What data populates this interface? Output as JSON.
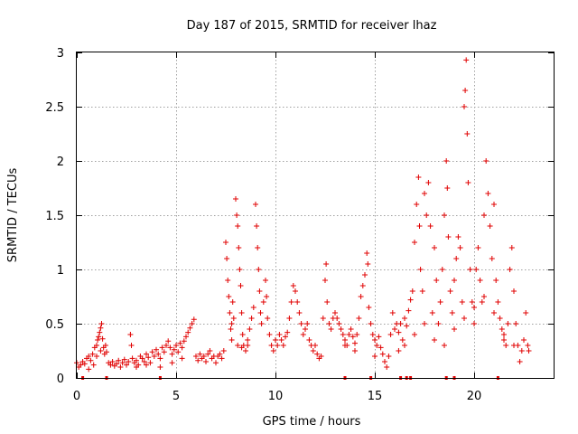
{
  "chart_data": {
    "type": "scatter",
    "title": "Day 187 of 2015, SRMTID for receiver lhaz",
    "xlabel": "GPS time / hours",
    "ylabel": "SRMTID / TECUs",
    "xlim": [
      0,
      24
    ],
    "ylim": [
      0,
      3
    ],
    "xticks": [
      0,
      5,
      10,
      15,
      20
    ],
    "yticks": [
      0,
      0.5,
      1,
      1.5,
      2,
      2.5,
      3
    ],
    "xtick_labels": [
      "0",
      "5",
      "10",
      "15",
      "20"
    ],
    "ytick_labels": [
      "0",
      "0.5",
      "1",
      "1.5",
      "2",
      "2.5",
      "3"
    ],
    "grid": true,
    "marker": "+",
    "color": "#e00000",
    "series": [
      {
        "name": "SRMTID",
        "points": [
          [
            0.0,
            0.14
          ],
          [
            0.1,
            0.1
          ],
          [
            0.2,
            0.12
          ],
          [
            0.3,
            0.15
          ],
          [
            0.4,
            0.13
          ],
          [
            0.5,
            0.18
          ],
          [
            0.6,
            0.2
          ],
          [
            0.7,
            0.16
          ],
          [
            0.8,
            0.22
          ],
          [
            0.9,
            0.28
          ],
          [
            1.0,
            0.3
          ],
          [
            1.05,
            0.35
          ],
          [
            1.1,
            0.38
          ],
          [
            1.15,
            0.42
          ],
          [
            1.2,
            0.46
          ],
          [
            1.25,
            0.5
          ],
          [
            1.3,
            0.36
          ],
          [
            1.35,
            0.28
          ],
          [
            1.4,
            0.22
          ],
          [
            1.45,
            0.3
          ],
          [
            1.5,
            0.24
          ],
          [
            0.6,
            0.08
          ],
          [
            0.85,
            0.12
          ],
          [
            1.0,
            0.2
          ],
          [
            1.2,
            0.25
          ],
          [
            1.6,
            0.14
          ],
          [
            1.7,
            0.12
          ],
          [
            1.8,
            0.15
          ],
          [
            1.9,
            0.11
          ],
          [
            2.0,
            0.13
          ],
          [
            2.1,
            0.16
          ],
          [
            2.2,
            0.1
          ],
          [
            2.3,
            0.14
          ],
          [
            2.4,
            0.17
          ],
          [
            2.5,
            0.12
          ],
          [
            2.6,
            0.15
          ],
          [
            2.7,
            0.4
          ],
          [
            2.75,
            0.3
          ],
          [
            2.8,
            0.18
          ],
          [
            2.9,
            0.14
          ],
          [
            3.0,
            0.16
          ],
          [
            3.1,
            0.12
          ],
          [
            3.2,
            0.2
          ],
          [
            3.3,
            0.18
          ],
          [
            3.4,
            0.15
          ],
          [
            3.5,
            0.22
          ],
          [
            3.6,
            0.19
          ],
          [
            3.7,
            0.14
          ],
          [
            3.8,
            0.24
          ],
          [
            3.9,
            0.2
          ],
          [
            4.0,
            0.26
          ],
          [
            4.1,
            0.22
          ],
          [
            4.2,
            0.18
          ],
          [
            4.3,
            0.28
          ],
          [
            4.4,
            0.24
          ],
          [
            4.5,
            0.3
          ],
          [
            4.6,
            0.34
          ],
          [
            4.7,
            0.28
          ],
          [
            4.8,
            0.22
          ],
          [
            4.9,
            0.26
          ],
          [
            5.0,
            0.3
          ],
          [
            5.1,
            0.24
          ],
          [
            5.2,
            0.32
          ],
          [
            5.3,
            0.28
          ],
          [
            5.4,
            0.34
          ],
          [
            5.5,
            0.38
          ],
          [
            5.6,
            0.42
          ],
          [
            5.7,
            0.46
          ],
          [
            5.8,
            0.5
          ],
          [
            5.9,
            0.54
          ],
          [
            3.0,
            0.1
          ],
          [
            3.5,
            0.12
          ],
          [
            4.2,
            0.1
          ],
          [
            4.8,
            0.14
          ],
          [
            5.3,
            0.18
          ],
          [
            6.0,
            0.2
          ],
          [
            6.1,
            0.16
          ],
          [
            6.2,
            0.22
          ],
          [
            6.3,
            0.18
          ],
          [
            6.4,
            0.2
          ],
          [
            6.5,
            0.15
          ],
          [
            6.6,
            0.22
          ],
          [
            6.7,
            0.25
          ],
          [
            6.8,
            0.18
          ],
          [
            6.9,
            0.2
          ],
          [
            7.0,
            0.14
          ],
          [
            7.1,
            0.2
          ],
          [
            7.2,
            0.22
          ],
          [
            7.3,
            0.18
          ],
          [
            7.4,
            0.25
          ],
          [
            7.5,
            1.25
          ],
          [
            7.55,
            1.1
          ],
          [
            7.6,
            0.9
          ],
          [
            7.65,
            0.75
          ],
          [
            7.7,
            0.6
          ],
          [
            7.75,
            0.45
          ],
          [
            7.8,
            0.5
          ],
          [
            7.85,
            0.7
          ],
          [
            7.9,
            0.55
          ],
          [
            8.0,
            1.65
          ],
          [
            8.05,
            1.5
          ],
          [
            8.1,
            1.4
          ],
          [
            8.15,
            1.2
          ],
          [
            8.2,
            1.0
          ],
          [
            8.25,
            0.85
          ],
          [
            8.3,
            0.6
          ],
          [
            8.35,
            0.4
          ],
          [
            8.4,
            0.3
          ],
          [
            8.5,
            0.25
          ],
          [
            8.6,
            0.35
          ],
          [
            8.7,
            0.45
          ],
          [
            8.8,
            0.55
          ],
          [
            8.9,
            0.65
          ],
          [
            9.0,
            1.6
          ],
          [
            9.05,
            1.4
          ],
          [
            9.1,
            1.2
          ],
          [
            9.15,
            1.0
          ],
          [
            9.2,
            0.8
          ],
          [
            9.25,
            0.6
          ],
          [
            9.3,
            0.5
          ],
          [
            9.4,
            0.7
          ],
          [
            9.5,
            0.9
          ],
          [
            9.55,
            0.75
          ],
          [
            9.6,
            0.55
          ],
          [
            9.7,
            0.4
          ],
          [
            9.8,
            0.3
          ],
          [
            9.9,
            0.25
          ],
          [
            8.1,
            0.3
          ],
          [
            8.3,
            0.28
          ],
          [
            8.6,
            0.3
          ],
          [
            7.8,
            0.35
          ],
          [
            10.0,
            0.35
          ],
          [
            10.1,
            0.3
          ],
          [
            10.2,
            0.4
          ],
          [
            10.3,
            0.35
          ],
          [
            10.4,
            0.3
          ],
          [
            10.5,
            0.38
          ],
          [
            10.6,
            0.42
          ],
          [
            10.7,
            0.55
          ],
          [
            10.8,
            0.7
          ],
          [
            10.9,
            0.85
          ],
          [
            11.0,
            0.8
          ],
          [
            11.1,
            0.7
          ],
          [
            11.2,
            0.6
          ],
          [
            11.3,
            0.5
          ],
          [
            11.4,
            0.4
          ],
          [
            11.5,
            0.45
          ],
          [
            11.6,
            0.5
          ],
          [
            11.7,
            0.35
          ],
          [
            11.8,
            0.3
          ],
          [
            11.9,
            0.25
          ],
          [
            12.0,
            0.3
          ],
          [
            12.1,
            0.22
          ],
          [
            12.2,
            0.18
          ],
          [
            12.3,
            0.2
          ],
          [
            12.4,
            0.55
          ],
          [
            12.5,
            0.9
          ],
          [
            12.55,
            1.05
          ],
          [
            12.6,
            0.7
          ],
          [
            12.7,
            0.5
          ],
          [
            12.8,
            0.45
          ],
          [
            12.9,
            0.55
          ],
          [
            13.0,
            0.6
          ],
          [
            13.1,
            0.55
          ],
          [
            13.2,
            0.5
          ],
          [
            13.3,
            0.45
          ],
          [
            13.4,
            0.4
          ],
          [
            13.5,
            0.35
          ],
          [
            13.6,
            0.3
          ],
          [
            13.7,
            0.4
          ],
          [
            13.8,
            0.45
          ],
          [
            13.9,
            0.38
          ],
          [
            14.0,
            0.32
          ],
          [
            14.1,
            0.4
          ],
          [
            14.2,
            0.55
          ],
          [
            14.3,
            0.75
          ],
          [
            14.4,
            0.85
          ],
          [
            14.5,
            0.95
          ],
          [
            14.6,
            1.15
          ],
          [
            14.65,
            1.05
          ],
          [
            14.7,
            0.65
          ],
          [
            14.8,
            0.5
          ],
          [
            14.9,
            0.4
          ],
          [
            15.0,
            0.35
          ],
          [
            15.1,
            0.3
          ],
          [
            15.2,
            0.38
          ],
          [
            15.3,
            0.28
          ],
          [
            15.4,
            0.22
          ],
          [
            15.5,
            0.15
          ],
          [
            15.6,
            0.1
          ],
          [
            15.7,
            0.2
          ],
          [
            15.8,
            0.4
          ],
          [
            15.9,
            0.6
          ],
          [
            16.0,
            0.45
          ],
          [
            16.1,
            0.5
          ],
          [
            16.2,
            0.42
          ],
          [
            16.3,
            0.5
          ],
          [
            16.4,
            0.35
          ],
          [
            16.5,
            0.55
          ],
          [
            16.6,
            0.48
          ],
          [
            16.7,
            0.62
          ],
          [
            16.8,
            0.72
          ],
          [
            16.9,
            0.8
          ],
          [
            17.0,
            1.25
          ],
          [
            17.1,
            1.6
          ],
          [
            17.2,
            1.85
          ],
          [
            17.25,
            1.4
          ],
          [
            17.3,
            1.0
          ],
          [
            17.4,
            0.8
          ],
          [
            17.5,
            1.7
          ],
          [
            17.6,
            1.5
          ],
          [
            17.7,
            1.8
          ],
          [
            17.8,
            1.4
          ],
          [
            17.9,
            0.6
          ],
          [
            18.0,
            1.2
          ],
          [
            18.1,
            0.9
          ],
          [
            18.2,
            0.5
          ],
          [
            18.3,
            0.7
          ],
          [
            18.4,
            1.0
          ],
          [
            18.5,
            1.5
          ],
          [
            18.6,
            2.0
          ],
          [
            18.65,
            1.75
          ],
          [
            18.7,
            1.3
          ],
          [
            18.8,
            0.8
          ],
          [
            18.9,
            0.6
          ],
          [
            19.0,
            0.9
          ],
          [
            19.1,
            1.1
          ],
          [
            19.2,
            1.3
          ],
          [
            19.3,
            1.2
          ],
          [
            19.4,
            0.7
          ],
          [
            19.5,
            2.5
          ],
          [
            19.55,
            2.65
          ],
          [
            19.6,
            2.93
          ],
          [
            19.65,
            2.25
          ],
          [
            19.7,
            1.8
          ],
          [
            19.8,
            1.0
          ],
          [
            19.9,
            0.7
          ],
          [
            20.0,
            0.5
          ],
          [
            20.1,
            1.0
          ],
          [
            20.2,
            1.2
          ],
          [
            20.3,
            0.9
          ],
          [
            20.4,
            0.7
          ],
          [
            20.5,
            1.5
          ],
          [
            20.6,
            2.0
          ],
          [
            20.7,
            1.7
          ],
          [
            20.8,
            1.4
          ],
          [
            20.9,
            1.1
          ],
          [
            21.0,
            1.6
          ],
          [
            21.1,
            0.9
          ],
          [
            21.2,
            0.7
          ],
          [
            21.3,
            0.55
          ],
          [
            21.4,
            0.45
          ],
          [
            21.5,
            0.35
          ],
          [
            21.6,
            0.3
          ],
          [
            21.7,
            0.5
          ],
          [
            21.8,
            1.0
          ],
          [
            21.9,
            1.2
          ],
          [
            22.0,
            0.8
          ],
          [
            22.1,
            0.5
          ],
          [
            22.2,
            0.3
          ],
          [
            22.3,
            0.15
          ],
          [
            22.4,
            0.25
          ],
          [
            22.5,
            0.35
          ],
          [
            22.6,
            0.6
          ],
          [
            22.7,
            0.3
          ],
          [
            22.75,
            0.25
          ],
          [
            16.2,
            0.25
          ],
          [
            16.5,
            0.3
          ],
          [
            17.0,
            0.4
          ],
          [
            17.5,
            0.5
          ],
          [
            18.0,
            0.35
          ],
          [
            18.5,
            0.3
          ],
          [
            19.0,
            0.45
          ],
          [
            19.5,
            0.55
          ],
          [
            20.0,
            0.65
          ],
          [
            20.5,
            0.75
          ],
          [
            21.0,
            0.6
          ],
          [
            21.5,
            0.4
          ],
          [
            22.0,
            0.3
          ],
          [
            15.0,
            0.2
          ],
          [
            14.0,
            0.25
          ],
          [
            13.5,
            0.3
          ]
        ]
      }
    ],
    "marks_on_axis_x": [
      0.3,
      1.5,
      4.2,
      13.5,
      14.8,
      16.3,
      16.6,
      16.8,
      18.6,
      19.0,
      21.2
    ]
  }
}
